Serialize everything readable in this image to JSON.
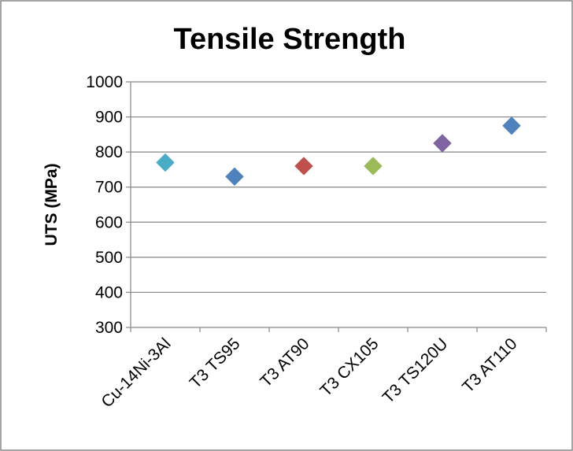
{
  "chart_data": {
    "type": "scatter",
    "title": "Tensile Strength",
    "xlabel": "",
    "ylabel": "UTS (MPa)",
    "ylim": [
      300,
      1000
    ],
    "yticks": [
      300,
      400,
      500,
      600,
      700,
      800,
      900,
      1000
    ],
    "grid": true,
    "legend": "none",
    "categories": [
      "Cu-14Ni-3Al",
      "T3 TS95",
      "T3 AT90",
      "T3 CX105",
      "T3 TS120U",
      "T3 AT110"
    ],
    "values": [
      770,
      730,
      760,
      760,
      825,
      875
    ],
    "colors": [
      "#4bacc6",
      "#4f81bd",
      "#c0504d",
      "#9bbb59",
      "#8064a2",
      "#4f81bd"
    ],
    "marker": "diamond"
  }
}
